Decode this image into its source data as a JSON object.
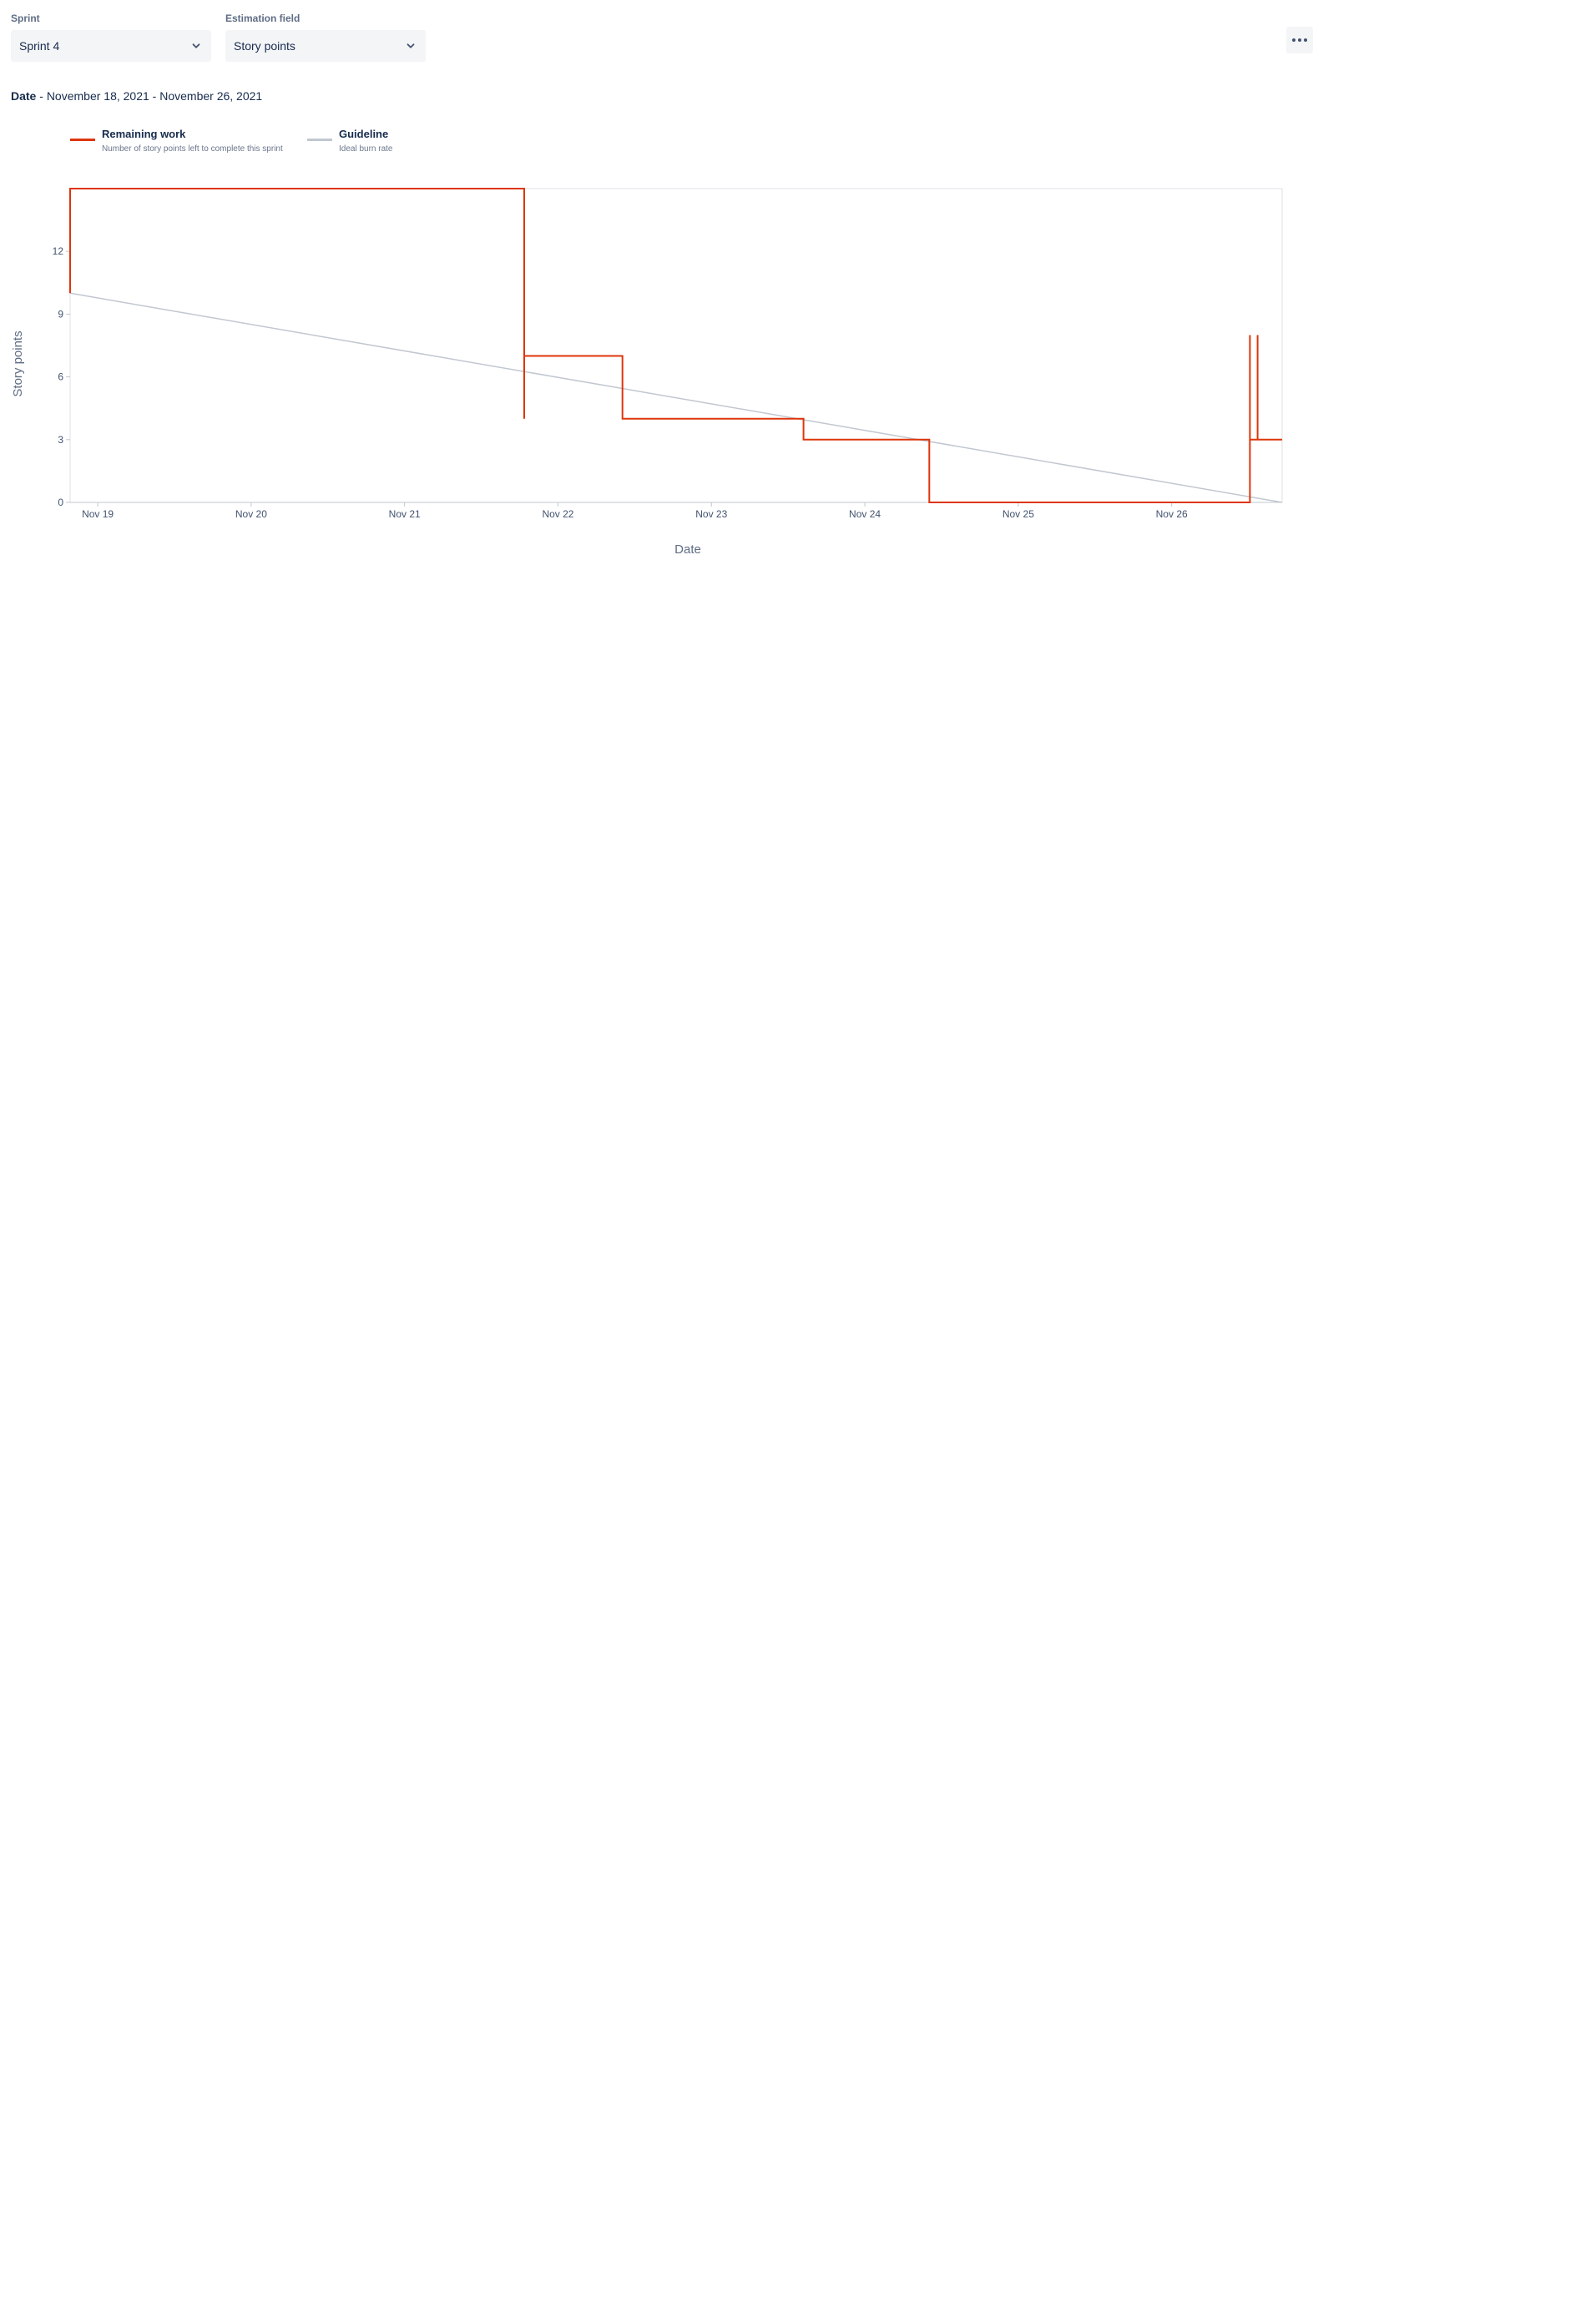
{
  "controls": {
    "sprint": {
      "label": "Sprint",
      "value": "Sprint 4"
    },
    "estimation": {
      "label": "Estimation field",
      "value": "Story points"
    }
  },
  "header": {
    "date_label": "Date",
    "date_separator": " - ",
    "date_range": "November 18, 2021 - November 26, 2021"
  },
  "legend": [
    {
      "title": "Remaining work",
      "description": "Number of story points left to complete this sprint",
      "color": "#de350b"
    },
    {
      "title": "Guideline",
      "description": "Ideal burn rate",
      "color": "#c1c7d0"
    }
  ],
  "icons": {
    "sprint_chevron": "chevron-down-icon",
    "estimation_chevron": "chevron-down-icon",
    "more": "more-horizontal-icon"
  },
  "chart_data": {
    "type": "line",
    "xlabel": "Date",
    "ylabel": "Story points",
    "xlim": [
      18.82,
      26.72
    ],
    "ylim": [
      0,
      15
    ],
    "x_ticks": [
      {
        "label": "Nov 19",
        "value": 19
      },
      {
        "label": "Nov 20",
        "value": 20
      },
      {
        "label": "Nov 21",
        "value": 21
      },
      {
        "label": "Nov 22",
        "value": 22
      },
      {
        "label": "Nov 23",
        "value": 23
      },
      {
        "label": "Nov 24",
        "value": 24
      },
      {
        "label": "Nov 25",
        "value": 25
      },
      {
        "label": "Nov 26",
        "value": 26
      }
    ],
    "y_ticks": [
      0,
      3,
      6,
      9,
      12
    ],
    "grid": false,
    "legend_position": "top-left",
    "series": [
      {
        "name": "Remaining work",
        "color": "#de350b",
        "step": true,
        "points": [
          [
            18.82,
            10
          ],
          [
            18.82,
            15
          ],
          [
            21.78,
            15
          ],
          [
            21.78,
            4
          ],
          [
            21.78,
            7
          ],
          [
            22.42,
            7
          ],
          [
            22.42,
            4
          ],
          [
            23.6,
            4
          ],
          [
            23.6,
            3
          ],
          [
            24.42,
            3
          ],
          [
            24.42,
            0
          ],
          [
            26.51,
            0
          ],
          [
            26.51,
            8
          ],
          [
            26.51,
            3
          ],
          [
            26.56,
            3
          ],
          [
            26.56,
            8
          ],
          [
            26.56,
            3
          ],
          [
            26.72,
            3
          ]
        ]
      },
      {
        "name": "Guideline",
        "color": "#c1c7d0",
        "step": false,
        "points": [
          [
            18.82,
            10
          ],
          [
            26.72,
            0
          ]
        ]
      }
    ]
  }
}
